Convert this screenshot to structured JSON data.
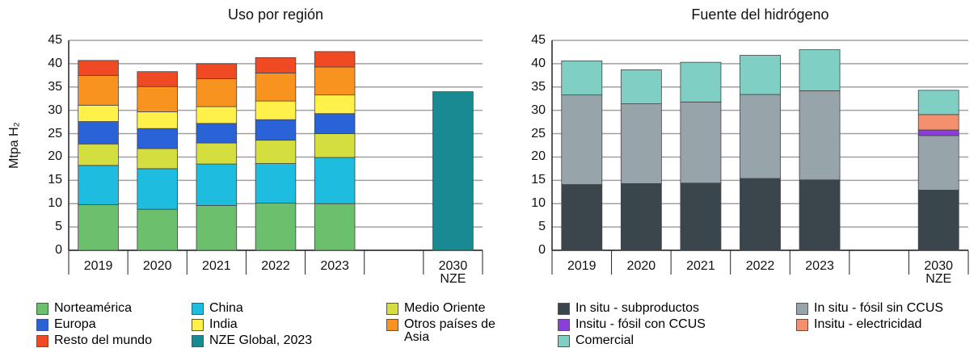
{
  "chart_data": [
    {
      "type": "bar",
      "stacked": true,
      "title": "Uso por región",
      "y_label": "Mtpa H₂",
      "categories": [
        "2019",
        "2020",
        "2021",
        "2022",
        "2023",
        null,
        "2030\nNZE"
      ],
      "ylim": [
        0,
        45
      ],
      "yticks": [
        0,
        5,
        10,
        15,
        20,
        25,
        30,
        35,
        40,
        45
      ],
      "grid": true,
      "series": [
        {
          "name": "Norteamérica",
          "color": "#6cbf6c",
          "values": [
            9.8,
            8.8,
            9.6,
            10.1,
            10.0,
            null,
            null
          ]
        },
        {
          "name": "China",
          "color": "#1ebde0",
          "values": [
            8.4,
            8.7,
            8.9,
            8.5,
            9.9,
            null,
            null
          ]
        },
        {
          "name": "Medio Oriente",
          "color": "#d4df3f",
          "values": [
            4.6,
            4.3,
            4.5,
            5.0,
            5.1,
            null,
            null
          ]
        },
        {
          "name": "Europa",
          "color": "#2a62d8",
          "values": [
            4.8,
            4.3,
            4.2,
            4.4,
            4.3,
            null,
            null
          ]
        },
        {
          "name": "India",
          "color": "#fff04a",
          "values": [
            3.5,
            3.6,
            3.6,
            4.0,
            4.0,
            null,
            null
          ]
        },
        {
          "name": "Otros países de\nAsia",
          "color": "#f7931e",
          "values": [
            6.4,
            5.4,
            6.0,
            6.0,
            6.0,
            null,
            null
          ]
        },
        {
          "name": "Resto del mundo",
          "color": "#ef4a23",
          "values": [
            3.2,
            3.2,
            3.2,
            3.3,
            3.3,
            null,
            null
          ]
        },
        {
          "name": "NZE Global, 2023",
          "color": "#1a8a92",
          "values": [
            null,
            null,
            null,
            null,
            null,
            null,
            34.0
          ]
        }
      ]
    },
    {
      "type": "bar",
      "stacked": true,
      "title": "Fuente del hidrógeno",
      "categories": [
        "2019",
        "2020",
        "2021",
        "2022",
        "2023",
        null,
        "2030\nNZE"
      ],
      "ylim": [
        0,
        45
      ],
      "yticks": [
        0,
        5,
        10,
        15,
        20,
        25,
        30,
        35,
        40,
        45
      ],
      "grid": true,
      "series": [
        {
          "name": "In situ - subproductos",
          "color": "#3a464b",
          "values": [
            14.1,
            14.3,
            14.4,
            15.4,
            15.1,
            null,
            12.9
          ]
        },
        {
          "name": "In situ - fósil sin CCUS",
          "color": "#97a5ab",
          "values": [
            19.2,
            17.1,
            17.4,
            18.0,
            19.1,
            null,
            11.7
          ]
        },
        {
          "name": "Insitu - fósil con CCUS",
          "color": "#8a3fd9",
          "values": [
            null,
            null,
            null,
            null,
            null,
            null,
            1.2
          ]
        },
        {
          "name": "Insitu - electricidad",
          "color": "#f4906e",
          "values": [
            null,
            null,
            null,
            null,
            null,
            null,
            3.3
          ]
        },
        {
          "name": "Comercial",
          "color": "#7fcfc5",
          "values": [
            7.3,
            7.3,
            8.5,
            8.4,
            8.8,
            null,
            5.2
          ]
        }
      ]
    }
  ]
}
